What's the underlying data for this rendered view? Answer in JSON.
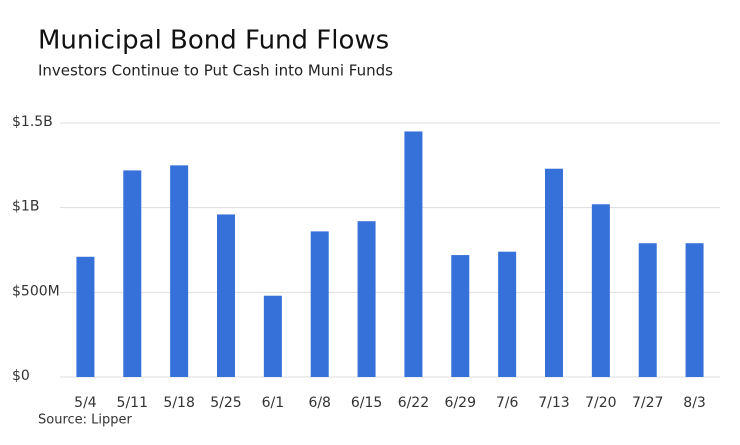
{
  "chart_data": {
    "type": "bar",
    "title": "Municipal Bond Fund Flows",
    "subtitle": "Investors Continue to Put Cash into Muni Funds",
    "source": "Source: Lipper",
    "categories": [
      "5/4",
      "5/11",
      "5/18",
      "5/25",
      "6/1",
      "6/8",
      "6/15",
      "6/22",
      "6/29",
      "7/6",
      "7/13",
      "7/20",
      "7/27",
      "8/3"
    ],
    "values": [
      710000000,
      1220000000,
      1250000000,
      960000000,
      480000000,
      860000000,
      920000000,
      1450000000,
      720000000,
      740000000,
      1230000000,
      1020000000,
      790000000,
      790000000
    ],
    "color": "#3670d9",
    "ylim": [
      0,
      1500000000
    ],
    "yticks": [
      {
        "value": 0,
        "label": "$0"
      },
      {
        "value": 500000000,
        "label": "$500M"
      },
      {
        "value": 1000000000,
        "label": "$1B"
      },
      {
        "value": 1500000000,
        "label": "$1.5B"
      }
    ],
    "grid": true
  }
}
